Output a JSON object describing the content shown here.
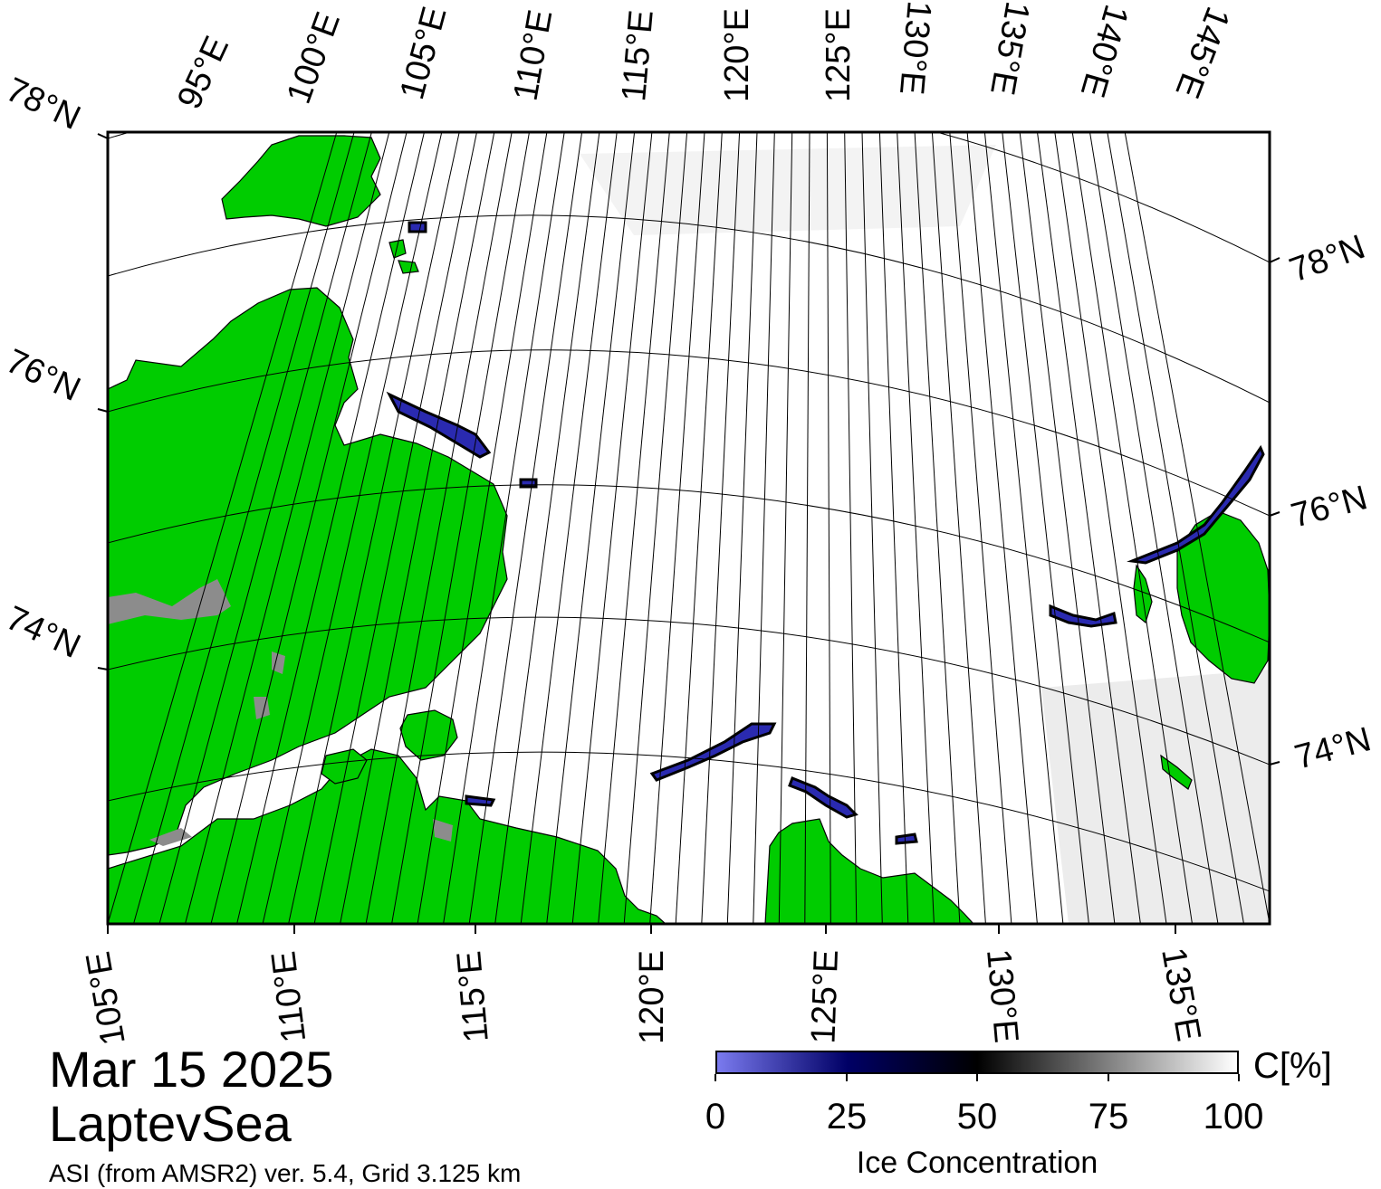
{
  "map": {
    "date": "Mar 15 2025",
    "region": "LaptevSea",
    "source": "ASI (from AMSR2) ver. 5.4,  Grid 3.125 km",
    "colors": {
      "land": "#00cc00",
      "land_missing": "#8c8c8c",
      "ocean_ice": "#ffffff",
      "low_ice": "#2a2ab0",
      "frame": "#000000"
    },
    "top_lon_labels": [
      "95°E",
      "100°E",
      "105°E",
      "110°E",
      "115°E",
      "120°E",
      "125°E",
      "130°E",
      "135°E",
      "140°E",
      "145°E"
    ],
    "bottom_lon_labels": [
      "105°E",
      "110°E",
      "115°E",
      "120°E",
      "125°E",
      "130°E",
      "135°E"
    ],
    "left_lat_labels": [
      "78°N",
      "76°N",
      "74°N"
    ],
    "right_lat_labels": [
      "78°N",
      "76°N",
      "74°N"
    ]
  },
  "colorbar": {
    "unit": "C[%]",
    "title": "Ice Concentration",
    "ticks": [
      "0",
      "25",
      "50",
      "75",
      "100"
    ],
    "range": [
      0,
      100
    ],
    "stops": [
      "#7a7aee",
      "#000066",
      "#000000",
      "#ffffff"
    ]
  }
}
